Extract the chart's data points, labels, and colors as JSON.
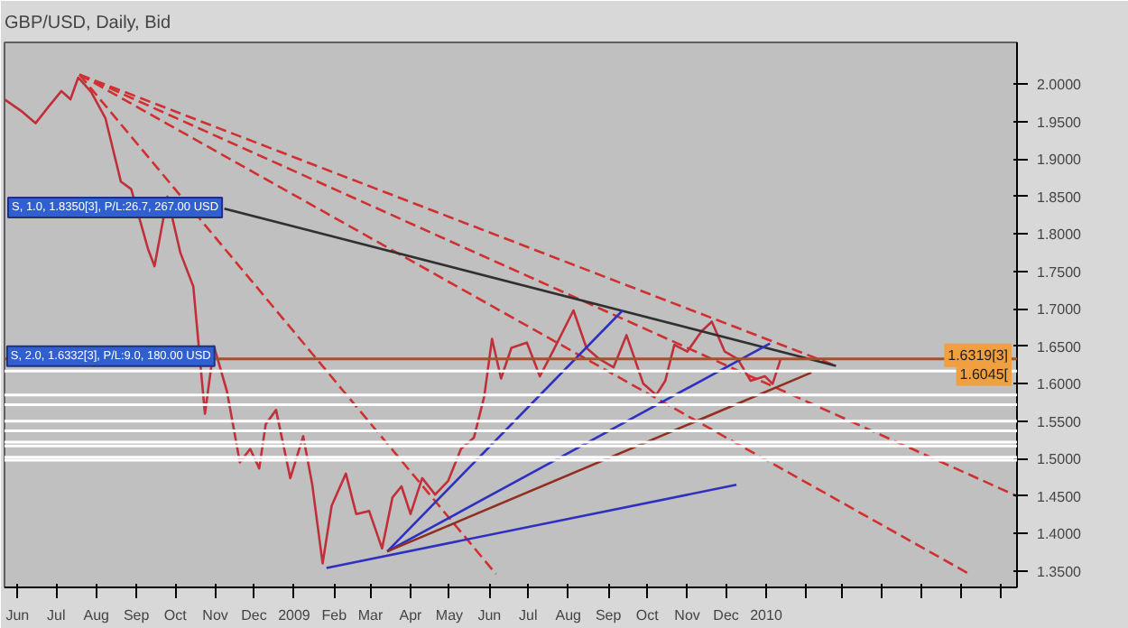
{
  "chart_data": {
    "type": "line",
    "title": "GBP/USD, Daily, Bid",
    "x": [
      "2008-05-22",
      "2008-06-05",
      "2008-06-15",
      "2008-06-25",
      "2008-07-05",
      "2008-07-12",
      "2008-07-18",
      "2008-07-28",
      "2008-08-08",
      "2008-08-20",
      "2008-08-28",
      "2008-09-10",
      "2008-09-15",
      "2008-09-25",
      "2008-10-05",
      "2008-10-15",
      "2008-10-24",
      "2008-10-31",
      "2008-11-10",
      "2008-11-20",
      "2008-11-28",
      "2008-12-05",
      "2008-12-10",
      "2008-12-18",
      "2008-12-29",
      "2009-01-08",
      "2009-01-15",
      "2009-01-23",
      "2009-01-30",
      "2009-02-10",
      "2009-02-18",
      "2009-02-28",
      "2009-03-10",
      "2009-03-18",
      "2009-03-25",
      "2009-04-01",
      "2009-04-10",
      "2009-04-20",
      "2009-04-30",
      "2009-05-10",
      "2009-05-20",
      "2009-05-28",
      "2009-06-03",
      "2009-06-10",
      "2009-06-18",
      "2009-06-30",
      "2009-07-10",
      "2009-07-20",
      "2009-08-05",
      "2009-08-15",
      "2009-08-25",
      "2009-09-05",
      "2009-09-15",
      "2009-09-28",
      "2009-10-08",
      "2009-10-15",
      "2009-10-22",
      "2009-11-01",
      "2009-11-12",
      "2009-11-20",
      "2009-11-30",
      "2009-12-10",
      "2009-12-20",
      "2009-12-31",
      "2010-01-06",
      "2010-01-12"
    ],
    "series": [
      {
        "color": "#c0303a",
        "values": [
          1.98,
          1.963,
          1.948,
          1.97,
          1.991,
          1.98,
          2.009,
          1.99,
          1.955,
          1.87,
          1.86,
          1.78,
          1.757,
          1.85,
          1.775,
          1.73,
          1.56,
          1.65,
          1.59,
          1.495,
          1.513,
          1.487,
          1.546,
          1.565,
          1.474,
          1.53,
          1.465,
          1.36,
          1.437,
          1.48,
          1.426,
          1.43,
          1.38,
          1.448,
          1.463,
          1.426,
          1.474,
          1.452,
          1.47,
          1.513,
          1.528,
          1.583,
          1.66,
          1.607,
          1.648,
          1.655,
          1.61,
          1.643,
          1.698,
          1.648,
          1.633,
          1.622,
          1.665,
          1.6,
          1.585,
          1.604,
          1.652,
          1.643,
          1.67,
          1.683,
          1.643,
          1.633,
          1.604,
          1.61,
          1.6,
          1.632
        ]
      },
      {
        "type": "line",
        "color": "#d03030",
        "line_style": "dashed",
        "x": [
          "2008-07-19",
          "2010-02-24"
        ],
        "values": [
          2.013,
          1.624
        ]
      },
      {
        "type": "line",
        "color": "#d03030",
        "line_style": "dashed",
        "x": [
          "2008-07-19",
          "2010-07-14"
        ],
        "values": [
          2.013,
          1.45
        ]
      },
      {
        "type": "line",
        "color": "#d03030",
        "line_style": "dashed",
        "x": [
          "2008-07-19",
          "2010-06-07"
        ],
        "values": [
          2.013,
          1.346
        ]
      },
      {
        "type": "line",
        "color": "#d03030",
        "line_style": "dashed",
        "x": [
          "2008-07-19",
          "2009-06-06"
        ],
        "values": [
          2.013,
          1.346
        ]
      },
      {
        "type": "line",
        "color": "#303030",
        "line_style": "solid",
        "x": [
          "2008-11-08",
          "2010-02-24"
        ],
        "values": [
          1.834,
          1.624
        ]
      },
      {
        "type": "line",
        "color": "#3030c0",
        "line_style": "solid",
        "x": [
          "2009-01-26",
          "2009-12-09"
        ],
        "values": [
          1.354,
          1.465
        ]
      },
      {
        "type": "line",
        "color": "#3030c0",
        "line_style": "solid",
        "x": [
          "2009-03-14",
          "2010-01-04"
        ],
        "values": [
          1.376,
          1.654
        ]
      },
      {
        "type": "line",
        "color": "#3030c0",
        "line_style": "solid",
        "x": [
          "2009-03-14",
          "2009-09-12"
        ],
        "values": [
          1.376,
          1.698
        ]
      },
      {
        "type": "line",
        "color": "#903020",
        "line_style": "solid",
        "x": [
          "2009-03-14",
          "2010-02-05"
        ],
        "values": [
          1.376,
          1.615
        ]
      }
    ],
    "xlim": [
      "2008-05-22",
      "2010-07-14"
    ],
    "xticks": [
      {
        "value": "2008-06",
        "label": "Jun"
      },
      {
        "value": "2008-07",
        "label": "Jul"
      },
      {
        "value": "2008-08",
        "label": "Aug"
      },
      {
        "value": "2008-09",
        "label": "Sep"
      },
      {
        "value": "2008-10",
        "label": "Oct"
      },
      {
        "value": "2008-11",
        "label": "Nov"
      },
      {
        "value": "2008-12",
        "label": "Dec"
      },
      {
        "value": "2009-01",
        "label": "2009"
      },
      {
        "value": "2009-02",
        "label": "Feb"
      },
      {
        "value": "2009-03",
        "label": "Mar"
      },
      {
        "value": "2009-04",
        "label": "Apr"
      },
      {
        "value": "2009-05",
        "label": "May"
      },
      {
        "value": "2009-06",
        "label": "Jun"
      },
      {
        "value": "2009-07",
        "label": "Jul"
      },
      {
        "value": "2009-08",
        "label": "Aug"
      },
      {
        "value": "2009-09",
        "label": "Sep"
      },
      {
        "value": "2009-10",
        "label": "Oct"
      },
      {
        "value": "2009-11",
        "label": "Nov"
      },
      {
        "value": "2009-12",
        "label": "Dec"
      },
      {
        "value": "2010-01",
        "label": "2010"
      },
      {
        "value": "2010-02",
        "label": null
      },
      {
        "value": "2010-03",
        "label": null
      },
      {
        "value": "2010-04",
        "label": null
      },
      {
        "value": "2010-05",
        "label": null
      },
      {
        "value": "2010-06",
        "label": null
      },
      {
        "value": "2010-07",
        "label": null
      }
    ],
    "ylim": [
      1.328,
      2.056
    ],
    "yticks": [
      {
        "value": 1.35,
        "label": "1.3500"
      },
      {
        "value": 1.4,
        "label": "1.4000"
      },
      {
        "value": 1.45,
        "label": "1.4500"
      },
      {
        "value": 1.5,
        "label": "1.5000"
      },
      {
        "value": 1.55,
        "label": "1.5500"
      },
      {
        "value": 1.6,
        "label": "1.6000"
      },
      {
        "value": 1.65,
        "label": "1.6500"
      },
      {
        "value": 1.7,
        "label": "1.7000"
      },
      {
        "value": 1.75,
        "label": "1.7500"
      },
      {
        "value": 1.8,
        "label": "1.8000"
      },
      {
        "value": 1.85,
        "label": "1.8500"
      },
      {
        "value": 1.9,
        "label": "1.9000"
      },
      {
        "value": 1.95,
        "label": "1.9500"
      },
      {
        "value": 2.0,
        "label": "2.0000"
      }
    ],
    "ref_lines": [
      {
        "axis": "y",
        "value": 1.6332,
        "color": "#a0522d"
      },
      {
        "axis": "y",
        "value": 1.617,
        "color": "#ffffff"
      },
      {
        "axis": "y",
        "value": 1.585,
        "color": "#ffffff"
      },
      {
        "axis": "y",
        "value": 1.572,
        "color": "#ffffff"
      },
      {
        "axis": "y",
        "value": 1.55,
        "color": "#ffffff"
      },
      {
        "axis": "y",
        "value": 1.537,
        "color": "#ffffff"
      },
      {
        "axis": "y",
        "value": 1.522,
        "color": "#ffffff"
      },
      {
        "axis": "y",
        "value": 1.517,
        "color": "#ffffff"
      },
      {
        "axis": "y",
        "value": 1.502,
        "color": "#ffffff"
      },
      {
        "axis": "y",
        "value": 1.498,
        "color": "#ffffff"
      }
    ],
    "annotations": [
      "S, 1.0, 1.8350[3], P/L:26.7, 267.00 USD",
      {
        "text": "S, 2.0, 1.6332[3], P/L:9.0, 180.00 USD",
        "x": "2008-05-24",
        "y": 1.6332
      },
      {
        "text": "1.6319[3]",
        "x": "2010-07-14",
        "y": 1.6319
      },
      {
        "text": "1.6045[",
        "x": "2010-07-14",
        "y": 1.607
      }
    ]
  }
}
